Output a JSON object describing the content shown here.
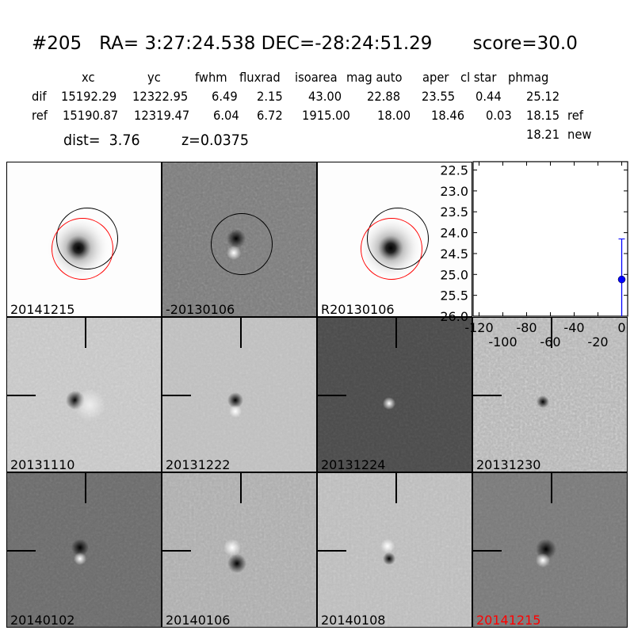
{
  "header": {
    "title": "#205   RA= 3:27:24.538 DEC=-28:24:51.29       score=30.0"
  },
  "table": {
    "columns": [
      "xc",
      "yc",
      "fwhm",
      "fluxrad",
      "isoarea",
      "mag auto",
      "aper",
      "cl star",
      "phmag"
    ],
    "rows": [
      {
        "label": "dif",
        "values": [
          "15192.29",
          "12322.95",
          "6.49",
          "2.15",
          "43.00",
          "22.88",
          "23.55",
          "0.44",
          "25.12"
        ],
        "suffix": ""
      },
      {
        "label": "ref",
        "values": [
          "15190.87",
          "12319.47",
          "6.04",
          "6.72",
          "1915.00",
          "18.00",
          "18.46",
          "0.03",
          "18.15"
        ],
        "suffix": "ref"
      }
    ],
    "new_mag": "18.21",
    "new_label": "new",
    "dist": "dist=  3.76",
    "z": "z=0.0375"
  },
  "panels": [
    {
      "label": "20141215",
      "kind": "image"
    },
    {
      "label": "-20130106",
      "kind": "difference"
    },
    {
      "label": "R20130106",
      "kind": "reference"
    },
    {
      "label": "20131110",
      "kind": "epoch"
    },
    {
      "label": "20131222",
      "kind": "epoch"
    },
    {
      "label": "20131224",
      "kind": "epoch"
    },
    {
      "label": "20131230",
      "kind": "epoch"
    },
    {
      "label": "20140102",
      "kind": "epoch"
    },
    {
      "label": "20140106",
      "kind": "epoch"
    },
    {
      "label": "20140108",
      "kind": "epoch"
    },
    {
      "label": "20141215",
      "kind": "epoch",
      "highlight": true
    }
  ],
  "colors": {
    "highlight_label": "#ff0000",
    "series": "#0000ff",
    "circle_ref": "#ff0000",
    "circle_new": "#000000"
  },
  "chart_data": {
    "type": "scatter",
    "x": [
      0
    ],
    "y": [
      25.12
    ],
    "yerr_upper": [
      24.15
    ],
    "yerr_lower": [
      26.0
    ],
    "xlim": [
      -125,
      5
    ],
    "ylim": [
      26.0,
      22.3
    ],
    "y_inverted": true,
    "xticks": [
      "-120",
      "-100",
      "-80",
      "-60",
      "-40",
      "-20",
      "0"
    ],
    "yticks": [
      "22.5",
      "23.0",
      "23.5",
      "24.0",
      "24.5",
      "25.0",
      "25.5",
      "26.0"
    ],
    "grid": false
  }
}
